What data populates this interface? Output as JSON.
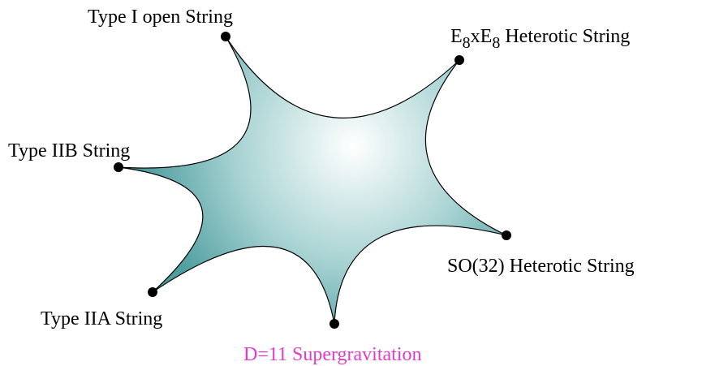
{
  "nodes": [
    {
      "label": "Type I open String"
    },
    {
      "label": [
        "E",
        "8",
        "xE",
        "8",
        " Heterotic String"
      ]
    },
    {
      "label": "SO(32) Heterotic String"
    },
    {
      "label": "D=11 Supergravitation"
    },
    {
      "label": "Type IIA String"
    },
    {
      "label": "Type IIB String"
    }
  ]
}
